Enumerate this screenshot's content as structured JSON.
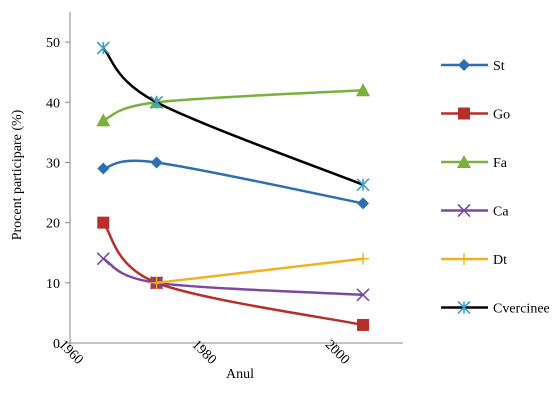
{
  "chart_data": {
    "type": "line",
    "title": "",
    "xlabel": "Anul",
    "ylabel": "Procent participare (%)",
    "xlim": [
      1960,
      2010
    ],
    "ylim": [
      0,
      55
    ],
    "x_ticks": [
      1960,
      1980,
      2000
    ],
    "y_ticks": [
      0,
      10,
      20,
      30,
      40,
      50
    ],
    "grid": false,
    "legend_position": "right",
    "series": [
      {
        "name": "St",
        "marker": "diamond",
        "color": "#2e6fb0",
        "x": [
          1965,
          1973,
          2004
        ],
        "y": [
          29,
          30,
          23.2
        ]
      },
      {
        "name": "Go",
        "marker": "square",
        "color": "#b5302a",
        "x": [
          1965,
          1973,
          2004
        ],
        "y": [
          20,
          10,
          3
        ]
      },
      {
        "name": "Fa",
        "marker": "triangle",
        "color": "#7ab03c",
        "x": [
          1965,
          1973,
          2004
        ],
        "y": [
          37,
          40,
          42
        ]
      },
      {
        "name": "Ca",
        "marker": "x",
        "color": "#7b4aa0",
        "x": [
          1965,
          1973,
          2004
        ],
        "y": [
          14,
          10,
          8
        ]
      },
      {
        "name": "Dt",
        "marker": "plus",
        "color": "#f2b01e",
        "x": [
          1973,
          2004
        ],
        "y": [
          10,
          14
        ]
      },
      {
        "name": "Cvercinee",
        "marker": "star",
        "color": "#000000",
        "marker_color": "#3aa0c8",
        "x": [
          1965,
          1973,
          2004
        ],
        "y": [
          49,
          40,
          26.3
        ]
      }
    ]
  }
}
